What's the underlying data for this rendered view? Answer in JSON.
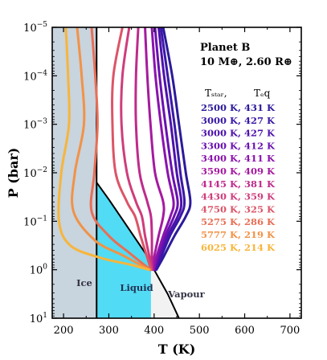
{
  "chart_data": {
    "type": "line",
    "xlabel": "T (K)",
    "ylabel": "P (bar)",
    "xlim": [
      175,
      725
    ],
    "ylim_log10": [
      -5,
      1
    ],
    "yscale": "log",
    "y_inverted": true,
    "x_ticks": [
      "200",
      "300",
      "400",
      "500",
      "600",
      "700"
    ],
    "y_tick_labels": [
      {
        "base": "10",
        "exp": "−5"
      },
      {
        "base": "10",
        "exp": "−4"
      },
      {
        "base": "10",
        "exp": "−3"
      },
      {
        "base": "10",
        "exp": "−2"
      },
      {
        "base": "10",
        "exp": "−1"
      },
      {
        "base": "10",
        "exp": "0"
      },
      {
        "base": "10",
        "exp": "1"
      }
    ],
    "annotation": {
      "line1": "Planet B",
      "line2": "10 M⊕, 2.60 R⊕"
    },
    "legend_header": [
      "Tₛₜₐᵣ,",
      "Tₑq"
    ],
    "regions": [
      {
        "name": "Ice",
        "color": "#c8d4de",
        "label_color": "#333344"
      },
      {
        "name": "Liquid",
        "color": "#52dbf4",
        "label_color": "#223355"
      },
      {
        "name": "Vapour",
        "color": "#f2f2f2",
        "label_color": "#333344"
      }
    ],
    "phase_boundaries": {
      "ice_liquid_T": 273,
      "ice_region_right": [
        [
          273,
          -5
        ],
        [
          273,
          1
        ]
      ],
      "liquid_vapour": [
        [
          273,
          -1.8
        ],
        [
          300,
          -1.45
        ],
        [
          340,
          -0.9
        ],
        [
          380,
          -0.35
        ],
        [
          400,
          0
        ],
        [
          430,
          0.5
        ],
        [
          455,
          1
        ]
      ],
      "liquid_bottom_T": 393
    },
    "series": [
      {
        "label": "2500 K, 431 K",
        "color": "#2b1a9a",
        "values": [
          [
            420,
            -5
          ],
          [
            440,
            -4
          ],
          [
            455,
            -3
          ],
          [
            470,
            -2
          ],
          [
            480,
            -1.4
          ],
          [
            470,
            -1.1
          ],
          [
            445,
            -0.7
          ],
          [
            420,
            -0.25
          ],
          [
            405,
            0
          ]
        ]
      },
      {
        "label": "3000 K, 427 K",
        "color": "#3a18a6",
        "values": [
          [
            415,
            -5
          ],
          [
            430,
            -4
          ],
          [
            445,
            -3
          ],
          [
            458,
            -2
          ],
          [
            467,
            -1.4
          ],
          [
            458,
            -1.1
          ],
          [
            435,
            -0.7
          ],
          [
            415,
            -0.25
          ],
          [
            403,
            0
          ]
        ]
      },
      {
        "label": "3000 K, 427 K",
        "color": "#4d12ab",
        "values": [
          [
            410,
            -5
          ],
          [
            422,
            -4
          ],
          [
            437,
            -3
          ],
          [
            450,
            -2
          ],
          [
            460,
            -1.4
          ],
          [
            452,
            -1.1
          ],
          [
            430,
            -0.7
          ],
          [
            412,
            -0.25
          ],
          [
            402,
            0
          ]
        ]
      },
      {
        "label": "3300 K, 412 K",
        "color": "#6a11b0",
        "values": [
          [
            402,
            -5
          ],
          [
            412,
            -4
          ],
          [
            425,
            -3
          ],
          [
            440,
            -2
          ],
          [
            452,
            -1.4
          ],
          [
            444,
            -1.1
          ],
          [
            425,
            -0.7
          ],
          [
            408,
            -0.25
          ],
          [
            400,
            0
          ]
        ]
      },
      {
        "label": "3400 K, 411 K",
        "color": "#8a13ad",
        "values": [
          [
            395,
            -5
          ],
          [
            403,
            -4
          ],
          [
            415,
            -3
          ],
          [
            430,
            -2
          ],
          [
            443,
            -1.4
          ],
          [
            436,
            -1.1
          ],
          [
            420,
            -0.7
          ],
          [
            405,
            -0.25
          ],
          [
            399,
            0
          ]
        ]
      },
      {
        "label": "3590 K, 409 K",
        "color": "#a51a9f",
        "values": [
          [
            380,
            -5
          ],
          [
            385,
            -4
          ],
          [
            392,
            -3
          ],
          [
            402,
            -2
          ],
          [
            420,
            -1.4
          ],
          [
            420,
            -1.1
          ],
          [
            410,
            -0.7
          ],
          [
            400,
            -0.25
          ],
          [
            397,
            0
          ]
        ]
      },
      {
        "label": "4145 K, 381 K",
        "color": "#bf2b8b",
        "values": [
          [
            365,
            -5
          ],
          [
            360,
            -4
          ],
          [
            360,
            -3
          ],
          [
            368,
            -2
          ],
          [
            385,
            -1.4
          ],
          [
            393,
            -1.1
          ],
          [
            395,
            -0.7
          ],
          [
            395,
            -0.25
          ],
          [
            395,
            0
          ]
        ]
      },
      {
        "label": "4430 K, 359 K",
        "color": "#cf3d7b",
        "values": [
          [
            345,
            -5
          ],
          [
            330,
            -4
          ],
          [
            328,
            -3
          ],
          [
            340,
            -2
          ],
          [
            360,
            -1.4
          ],
          [
            373,
            -1.1
          ],
          [
            380,
            -0.7
          ],
          [
            390,
            -0.25
          ],
          [
            395,
            0
          ]
        ]
      },
      {
        "label": "4750 K, 325 K",
        "color": "#dc5468",
        "values": [
          [
            330,
            -5
          ],
          [
            310,
            -4
          ],
          [
            308,
            -3
          ],
          [
            315,
            -2
          ],
          [
            340,
            -1.4
          ],
          [
            358,
            -1.1
          ],
          [
            370,
            -0.7
          ],
          [
            385,
            -0.25
          ],
          [
            393,
            0
          ]
        ]
      },
      {
        "label": "5275 K, 286 K",
        "color": "#e86e55",
        "values": [
          [
            262,
            -5
          ],
          [
            270,
            -4
          ],
          [
            275,
            -3
          ],
          [
            268,
            -2
          ],
          [
            262,
            -1.2
          ],
          [
            300,
            -0.7
          ],
          [
            345,
            -0.35
          ],
          [
            385,
            -0.05
          ],
          [
            392,
            0
          ]
        ]
      },
      {
        "label": "5777 K, 219 K",
        "color": "#f29246",
        "values": [
          [
            230,
            -5
          ],
          [
            240,
            -4
          ],
          [
            245,
            -3
          ],
          [
            225,
            -2
          ],
          [
            222,
            -1.2
          ],
          [
            270,
            -0.6
          ],
          [
            330,
            -0.3
          ],
          [
            380,
            -0.05
          ],
          [
            390,
            0
          ]
        ]
      },
      {
        "label": "6025 K, 214 K",
        "color": "#f7b53b",
        "values": [
          [
            205,
            -5
          ],
          [
            210,
            -4
          ],
          [
            212,
            -3
          ],
          [
            195,
            -2
          ],
          [
            190,
            -1
          ],
          [
            215,
            -0.5
          ],
          [
            280,
            -0.25
          ],
          [
            350,
            -0.1
          ],
          [
            388,
            0
          ]
        ]
      }
    ]
  }
}
